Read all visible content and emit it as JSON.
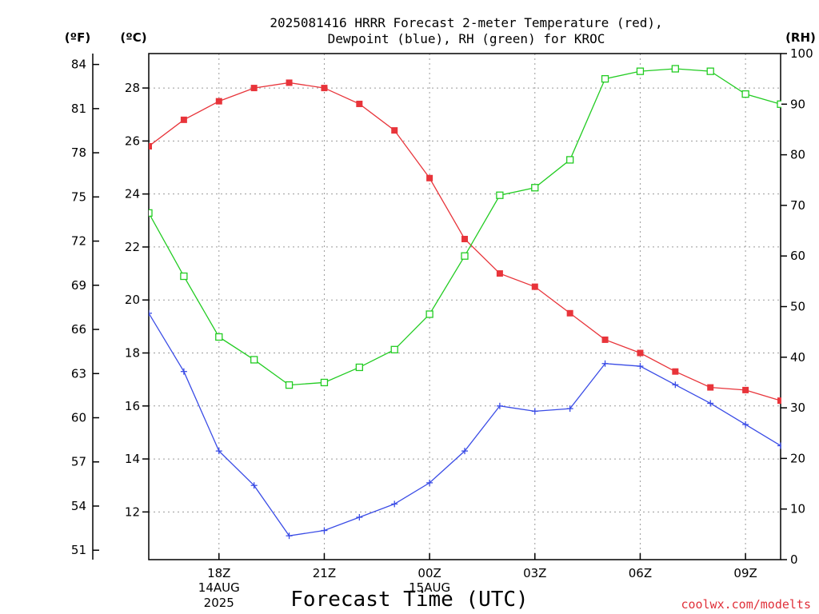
{
  "title_line1": "2025081416 HRRR Forecast 2-meter Temperature (red),",
  "title_line2": "Dewpoint (blue), RH (green) for KROC",
  "unit_f": "(ºF)",
  "unit_c": "(ºC)",
  "unit_rh": "(RH)",
  "xlabel": "Forecast Time (UTC)",
  "credit": "coolwx.com/modelts",
  "colors": {
    "temp": "#e8343a",
    "dew": "#3a4ce6",
    "rh": "#22cc22"
  },
  "chart_data": {
    "type": "line",
    "x_hours": [
      0,
      1,
      2,
      3,
      4,
      5,
      6,
      7,
      8,
      9,
      10,
      11,
      12,
      13,
      14,
      15,
      16,
      17,
      18
    ],
    "x_ticks": [
      {
        "hour": 2,
        "label": "18Z",
        "sub1": "14AUG",
        "sub2": "2025"
      },
      {
        "hour": 5,
        "label": "21Z"
      },
      {
        "hour": 8,
        "label": "00Z",
        "sub1": "15AUG"
      },
      {
        "hour": 11,
        "label": "03Z"
      },
      {
        "hour": 14,
        "label": "06Z"
      },
      {
        "hour": 17,
        "label": "09Z"
      }
    ],
    "xlim": [
      0,
      18
    ],
    "ylim_c": [
      10.2,
      29.3
    ],
    "yticks_c": [
      12,
      14,
      16,
      18,
      20,
      22,
      24,
      26,
      28
    ],
    "yticks_f": [
      51,
      54,
      57,
      60,
      63,
      66,
      69,
      72,
      75,
      78,
      81,
      84
    ],
    "ylim_rh": [
      0,
      100
    ],
    "yticks_rh": [
      0,
      10,
      20,
      30,
      40,
      50,
      60,
      70,
      80,
      90,
      100
    ],
    "grid": true,
    "series": [
      {
        "name": "Temperature (red)",
        "axis": "c",
        "marker": "filled-square",
        "color": "temp",
        "values": [
          25.8,
          26.8,
          27.5,
          28.0,
          28.2,
          28.0,
          27.4,
          26.4,
          24.6,
          22.3,
          21.0,
          20.5,
          19.5,
          18.5,
          18.0,
          17.3,
          16.7,
          16.6,
          16.2
        ]
      },
      {
        "name": "Dewpoint (blue)",
        "axis": "c",
        "marker": "plus",
        "color": "dew",
        "values": [
          19.5,
          17.3,
          14.3,
          13.0,
          11.1,
          11.3,
          11.8,
          12.3,
          13.1,
          14.3,
          16.0,
          15.8,
          15.9,
          17.6,
          17.5,
          16.8,
          16.1,
          15.3,
          14.5
        ]
      },
      {
        "name": "RH (green)",
        "axis": "rh",
        "marker": "open-square",
        "color": "rh",
        "values": [
          68.5,
          56.0,
          44.0,
          39.5,
          34.5,
          35.0,
          38.0,
          41.5,
          48.5,
          60.0,
          72.0,
          73.5,
          79.0,
          95.0,
          96.5,
          97.0,
          96.5,
          92.0,
          90.0
        ]
      }
    ]
  }
}
